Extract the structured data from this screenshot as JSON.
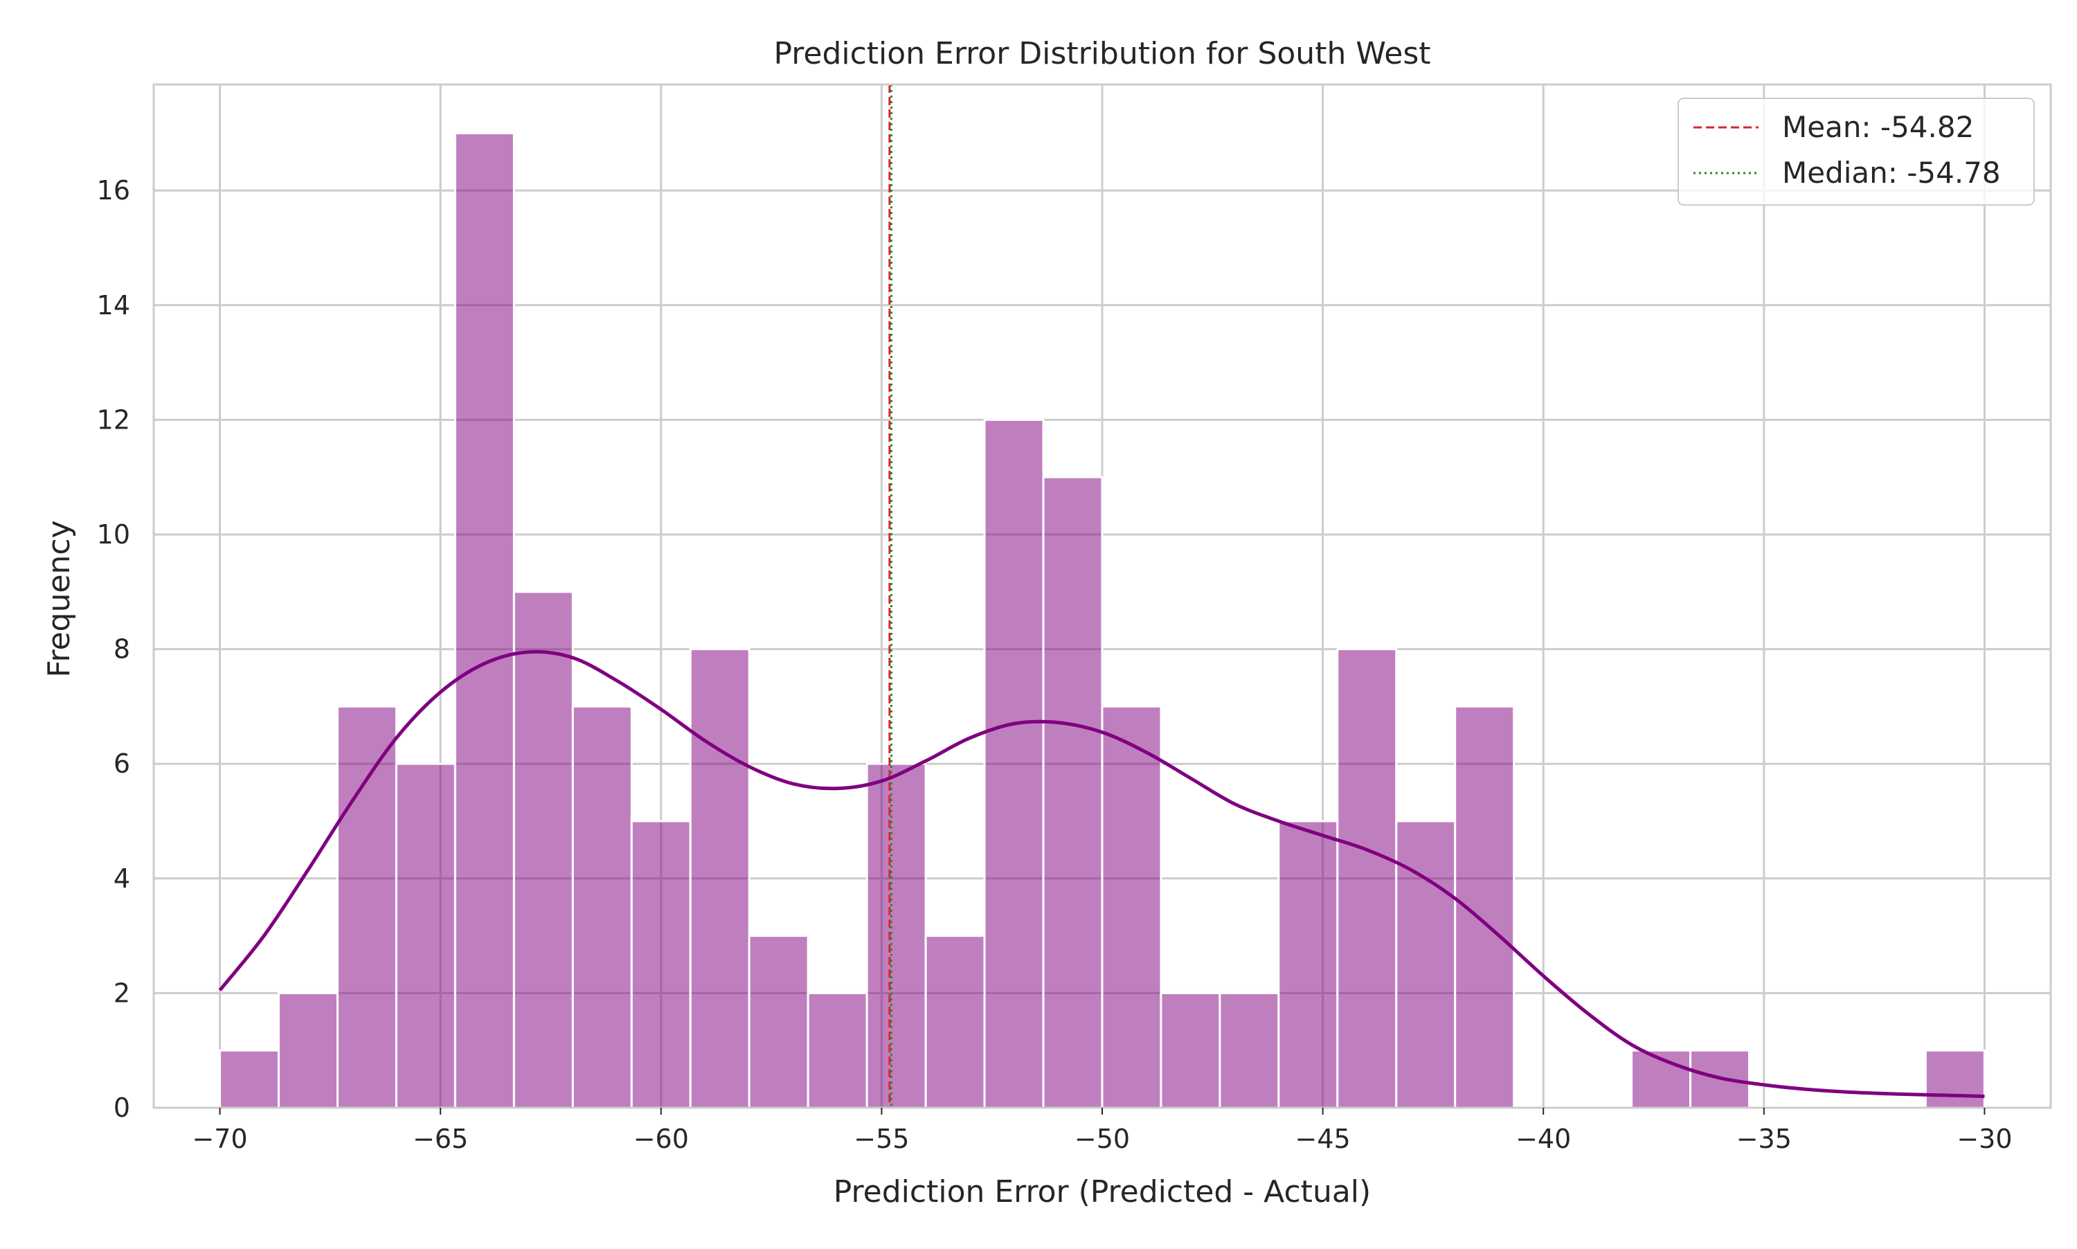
{
  "chart_data": {
    "type": "histogram",
    "title": "Prediction Error Distribution for South West",
    "xlabel": "Prediction Error (Predicted - Actual)",
    "ylabel": "Frequency",
    "xlim": [
      -71.5,
      -28.5
    ],
    "ylim": [
      0,
      17.85
    ],
    "xticks": [
      -70,
      -65,
      -60,
      -55,
      -50,
      -45,
      -40,
      -35,
      -30
    ],
    "xtick_labels": [
      "−70",
      "−65",
      "−60",
      "−55",
      "−50",
      "−45",
      "−40",
      "−35",
      "−30"
    ],
    "yticks": [
      0,
      2,
      4,
      6,
      8,
      10,
      12,
      14,
      16
    ],
    "ytick_labels": [
      "0",
      "2",
      "4",
      "6",
      "8",
      "10",
      "12",
      "14",
      "16"
    ],
    "grid": true,
    "bins": {
      "start": -70.0,
      "width": 1.3333,
      "counts": [
        1,
        2,
        7,
        6,
        17,
        9,
        7,
        5,
        8,
        3,
        2,
        6,
        3,
        12,
        11,
        7,
        2,
        2,
        5,
        8,
        5,
        7,
        0,
        0,
        1,
        1,
        0,
        0,
        0,
        1
      ]
    },
    "bar_color": "#800080",
    "bar_opacity": 0.5,
    "kde": {
      "color": "#800080",
      "x": [
        -70,
        -69,
        -68,
        -67,
        -66,
        -65,
        -64,
        -63,
        -62,
        -61,
        -60,
        -59,
        -58,
        -57,
        -56,
        -55,
        -54,
        -53,
        -52,
        -51,
        -50,
        -49,
        -48,
        -47,
        -46,
        -45,
        -44,
        -43,
        -42,
        -41,
        -40,
        -39,
        -38,
        -37,
        -36,
        -35,
        -34,
        -33,
        -32,
        -31,
        -30
      ],
      "y": [
        2.05,
        3.0,
        4.15,
        5.35,
        6.45,
        7.25,
        7.75,
        7.95,
        7.85,
        7.45,
        6.95,
        6.4,
        5.95,
        5.65,
        5.57,
        5.7,
        6.05,
        6.45,
        6.7,
        6.72,
        6.55,
        6.2,
        5.75,
        5.3,
        5.0,
        4.75,
        4.5,
        4.15,
        3.65,
        3.0,
        2.3,
        1.65,
        1.1,
        0.75,
        0.52,
        0.4,
        0.32,
        0.27,
        0.24,
        0.22,
        0.2
      ]
    },
    "reference_lines": [
      {
        "name": "Mean: -54.82",
        "value": -54.82,
        "color": "#d62728",
        "style": "dashed"
      },
      {
        "name": "Median: -54.78",
        "value": -54.78,
        "color": "#228b22",
        "style": "dotted"
      }
    ],
    "legend": {
      "placement": "top-right",
      "entries": [
        "Mean: -54.82",
        "Median: -54.78"
      ]
    }
  }
}
